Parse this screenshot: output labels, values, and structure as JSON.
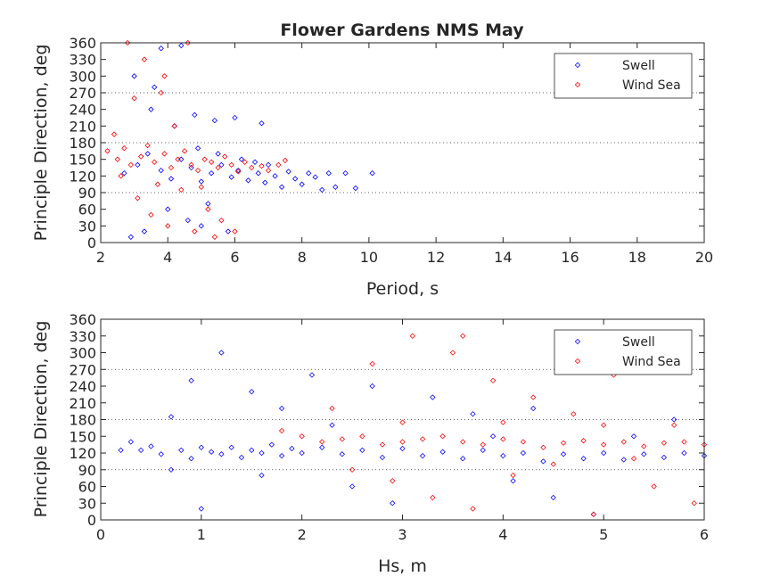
{
  "chart_data": [
    {
      "type": "scatter",
      "title": "Flower Gardens NMS May",
      "xlabel": "Period, s",
      "ylabel": "Principle Direction, deg",
      "xlim": [
        2,
        20
      ],
      "ylim": [
        0,
        360
      ],
      "x_ticks": [
        "2",
        "4",
        "6",
        "8",
        "10",
        "12",
        "14",
        "16",
        "18",
        "20"
      ],
      "y_ticks": [
        "0",
        "30",
        "60",
        "90",
        "120",
        "150",
        "180",
        "210",
        "240",
        "270",
        "300",
        "330",
        "360"
      ],
      "grid": "dotted horizontal lines at 90, 180, 270",
      "legend_position": "top-right",
      "marker": "diamond",
      "series": [
        {
          "name": "Swell",
          "color": "#0000ff",
          "points": [
            [
              2.7,
              125
            ],
            [
              3.1,
              140
            ],
            [
              3.4,
              160
            ],
            [
              3.8,
              130
            ],
            [
              4.1,
              115
            ],
            [
              4.4,
              150
            ],
            [
              4.7,
              135
            ],
            [
              5.0,
              110
            ],
            [
              5.3,
              125
            ],
            [
              5.6,
              140
            ],
            [
              5.9,
              118
            ],
            [
              6.1,
              130
            ],
            [
              6.4,
              112
            ],
            [
              6.7,
              125
            ],
            [
              6.9,
              108
            ],
            [
              7.2,
              120
            ],
            [
              7.4,
              100
            ],
            [
              7.6,
              128
            ],
            [
              7.8,
              115
            ],
            [
              8.0,
              105
            ],
            [
              8.2,
              125
            ],
            [
              8.4,
              118
            ],
            [
              8.6,
              95
            ],
            [
              8.8,
              125
            ],
            [
              9.0,
              100
            ],
            [
              9.3,
              125
            ],
            [
              9.6,
              98
            ],
            [
              10.1,
              125
            ],
            [
              3.5,
              240
            ],
            [
              4.2,
              210
            ],
            [
              4.8,
              230
            ],
            [
              5.4,
              220
            ],
            [
              6.0,
              225
            ],
            [
              6.8,
              215
            ],
            [
              4.0,
              60
            ],
            [
              4.6,
              40
            ],
            [
              5.2,
              70
            ],
            [
              3.3,
              20
            ],
            [
              3.8,
              350
            ],
            [
              4.4,
              355
            ],
            [
              5.0,
              30
            ],
            [
              5.8,
              20
            ],
            [
              6.2,
              150
            ],
            [
              6.6,
              145
            ],
            [
              7.0,
              140
            ],
            [
              5.5,
              160
            ],
            [
              4.9,
              170
            ],
            [
              3.0,
              300
            ],
            [
              3.6,
              280
            ],
            [
              2.9,
              10
            ]
          ]
        },
        {
          "name": "Wind Sea",
          "color": "#ff0000",
          "points": [
            [
              2.2,
              165
            ],
            [
              2.5,
              150
            ],
            [
              2.7,
              170
            ],
            [
              2.9,
              140
            ],
            [
              3.2,
              155
            ],
            [
              3.4,
              175
            ],
            [
              3.6,
              145
            ],
            [
              3.9,
              160
            ],
            [
              4.1,
              135
            ],
            [
              4.3,
              150
            ],
            [
              4.5,
              165
            ],
            [
              4.7,
              140
            ],
            [
              4.9,
              130
            ],
            [
              5.1,
              150
            ],
            [
              5.3,
              145
            ],
            [
              5.5,
              135
            ],
            [
              5.7,
              155
            ],
            [
              5.9,
              140
            ],
            [
              6.1,
              128
            ],
            [
              6.3,
              145
            ],
            [
              6.5,
              135
            ],
            [
              6.8,
              138
            ],
            [
              7.0,
              130
            ],
            [
              7.3,
              140
            ],
            [
              7.5,
              148
            ],
            [
              2.4,
              195
            ],
            [
              3.0,
              260
            ],
            [
              3.8,
              270
            ],
            [
              3.3,
              330
            ],
            [
              4.6,
              360
            ],
            [
              2.8,
              360
            ],
            [
              3.1,
              80
            ],
            [
              3.5,
              50
            ],
            [
              4.0,
              30
            ],
            [
              4.8,
              20
            ],
            [
              5.2,
              60
            ],
            [
              5.6,
              40
            ],
            [
              6.0,
              20
            ],
            [
              4.4,
              95
            ],
            [
              5.0,
              100
            ],
            [
              2.6,
              120
            ],
            [
              3.7,
              105
            ],
            [
              4.2,
              210
            ],
            [
              3.9,
              300
            ],
            [
              5.4,
              10
            ]
          ]
        }
      ]
    },
    {
      "type": "scatter",
      "title": "",
      "xlabel": "Hs, m",
      "ylabel": "Principle Direction, deg",
      "xlim": [
        0,
        6
      ],
      "ylim": [
        0,
        360
      ],
      "x_ticks": [
        "0",
        "1",
        "2",
        "3",
        "4",
        "5",
        "6"
      ],
      "y_ticks": [
        "0",
        "30",
        "60",
        "90",
        "120",
        "150",
        "180",
        "210",
        "240",
        "270",
        "300",
        "330",
        "360"
      ],
      "grid": "dotted horizontal lines at 90, 180, 270",
      "legend_position": "top-right",
      "marker": "diamond",
      "series": [
        {
          "name": "Swell",
          "color": "#0000ff",
          "points": [
            [
              0.2,
              125
            ],
            [
              0.3,
              140
            ],
            [
              0.4,
              125
            ],
            [
              0.5,
              132
            ],
            [
              0.6,
              118
            ],
            [
              0.7,
              185
            ],
            [
              0.8,
              125
            ],
            [
              0.9,
              110
            ],
            [
              1.0,
              130
            ],
            [
              1.1,
              122
            ],
            [
              1.2,
              118
            ],
            [
              1.3,
              130
            ],
            [
              1.4,
              112
            ],
            [
              1.5,
              125
            ],
            [
              1.6,
              120
            ],
            [
              1.7,
              135
            ],
            [
              1.8,
              115
            ],
            [
              1.9,
              128
            ],
            [
              2.0,
              120
            ],
            [
              2.2,
              130
            ],
            [
              2.4,
              118
            ],
            [
              2.6,
              125
            ],
            [
              2.8,
              112
            ],
            [
              3.0,
              128
            ],
            [
              3.2,
              115
            ],
            [
              3.4,
              122
            ],
            [
              3.6,
              110
            ],
            [
              3.8,
              125
            ],
            [
              4.0,
              115
            ],
            [
              4.2,
              120
            ],
            [
              4.4,
              105
            ],
            [
              4.6,
              118
            ],
            [
              4.8,
              110
            ],
            [
              5.0,
              120
            ],
            [
              5.2,
              108
            ],
            [
              5.4,
              118
            ],
            [
              5.6,
              112
            ],
            [
              5.8,
              120
            ],
            [
              6.0,
              115
            ],
            [
              0.7,
              90
            ],
            [
              0.9,
              250
            ],
            [
              1.2,
              300
            ],
            [
              1.5,
              230
            ],
            [
              1.8,
              200
            ],
            [
              2.1,
              260
            ],
            [
              2.5,
              60
            ],
            [
              2.9,
              30
            ],
            [
              3.3,
              220
            ],
            [
              3.7,
              190
            ],
            [
              4.1,
              70
            ],
            [
              4.5,
              40
            ],
            [
              4.9,
              10
            ],
            [
              5.3,
              150
            ],
            [
              5.7,
              180
            ],
            [
              1.0,
              20
            ],
            [
              1.6,
              80
            ],
            [
              2.3,
              170
            ],
            [
              2.7,
              240
            ],
            [
              3.9,
              150
            ],
            [
              4.3,
              200
            ]
          ]
        },
        {
          "name": "Wind Sea",
          "color": "#ff0000",
          "points": [
            [
              1.8,
              160
            ],
            [
              2.0,
              150
            ],
            [
              2.2,
              140
            ],
            [
              2.4,
              145
            ],
            [
              2.6,
              150
            ],
            [
              2.8,
              135
            ],
            [
              3.0,
              140
            ],
            [
              3.2,
              145
            ],
            [
              3.4,
              150
            ],
            [
              3.6,
              140
            ],
            [
              3.8,
              135
            ],
            [
              4.0,
              145
            ],
            [
              4.2,
              140
            ],
            [
              4.4,
              130
            ],
            [
              4.6,
              138
            ],
            [
              4.8,
              142
            ],
            [
              5.0,
              135
            ],
            [
              5.2,
              140
            ],
            [
              5.4,
              132
            ],
            [
              5.6,
              138
            ],
            [
              5.8,
              140
            ],
            [
              6.0,
              135
            ],
            [
              2.3,
              200
            ],
            [
              2.7,
              280
            ],
            [
              3.1,
              330
            ],
            [
              3.5,
              300
            ],
            [
              3.9,
              250
            ],
            [
              4.3,
              220
            ],
            [
              4.7,
              190
            ],
            [
              5.1,
              260
            ],
            [
              5.5,
              60
            ],
            [
              5.9,
              30
            ],
            [
              2.5,
              90
            ],
            [
              2.9,
              70
            ],
            [
              3.3,
              40
            ],
            [
              3.7,
              20
            ],
            [
              4.1,
              80
            ],
            [
              4.5,
              100
            ],
            [
              4.9,
              10
            ],
            [
              5.3,
              110
            ],
            [
              5.7,
              170
            ],
            [
              3.0,
              175
            ],
            [
              4.0,
              175
            ],
            [
              5.0,
              170
            ],
            [
              3.6,
              330
            ]
          ]
        }
      ]
    }
  ]
}
